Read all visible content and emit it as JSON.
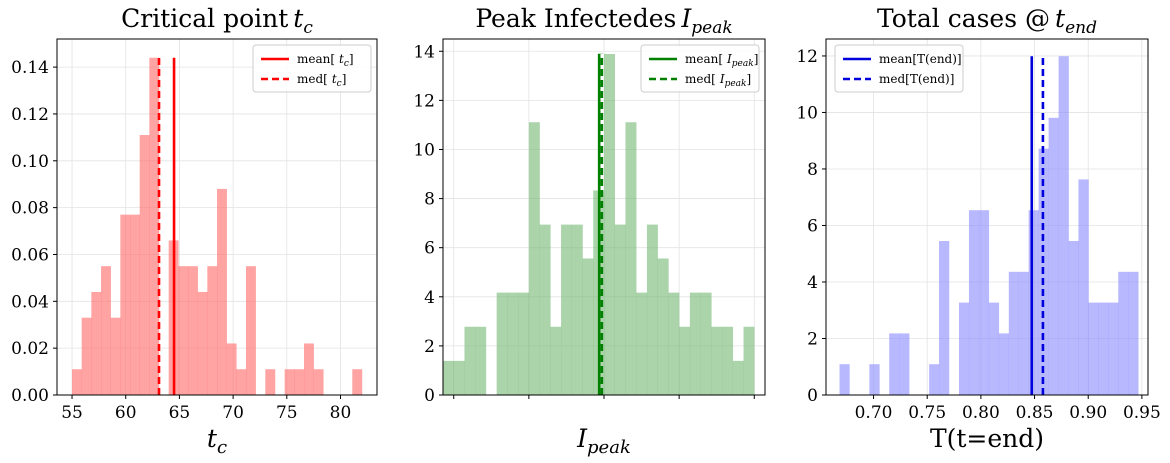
{
  "chart_data": [
    {
      "type": "histogram",
      "title": "Critical point",
      "title_math": "t",
      "title_math_sub": "c",
      "xlabel_math": "t",
      "xlabel_math_sub": "c",
      "xlim": [
        53.6,
        83.4
      ],
      "ylim": [
        0,
        0.152
      ],
      "xticks": [
        55,
        60,
        65,
        70,
        75,
        80
      ],
      "yticks": [
        0.0,
        0.02,
        0.04,
        0.06,
        0.08,
        0.1,
        0.12,
        0.14
      ],
      "xtick_labels": [
        "55",
        "60",
        "65",
        "70",
        "75",
        "80"
      ],
      "ytick_labels": [
        "0.00",
        "0.02",
        "0.04",
        "0.06",
        "0.08",
        "0.10",
        "0.12",
        "0.14"
      ],
      "color": "#ff6b6b",
      "line_color": "#ff0000",
      "bins": [
        {
          "x0": 55.0,
          "x1": 55.9,
          "value": 0.011
        },
        {
          "x0": 55.9,
          "x1": 56.8,
          "value": 0.033
        },
        {
          "x0": 56.8,
          "x1": 57.7,
          "value": 0.044
        },
        {
          "x0": 57.7,
          "x1": 58.6,
          "value": 0.055
        },
        {
          "x0": 58.6,
          "x1": 59.5,
          "value": 0.033
        },
        {
          "x0": 59.5,
          "x1": 60.4,
          "value": 0.077
        },
        {
          "x0": 60.4,
          "x1": 61.3,
          "value": 0.077
        },
        {
          "x0": 61.3,
          "x1": 62.2,
          "value": 0.111
        },
        {
          "x0": 62.2,
          "x1": 63.1,
          "value": 0.144
        },
        {
          "x0": 63.1,
          "x1": 64.0,
          "value": 0.0
        },
        {
          "x0": 64.0,
          "x1": 64.9,
          "value": 0.066
        },
        {
          "x0": 64.9,
          "x1": 65.8,
          "value": 0.055
        },
        {
          "x0": 65.8,
          "x1": 66.7,
          "value": 0.055
        },
        {
          "x0": 66.7,
          "x1": 67.6,
          "value": 0.044
        },
        {
          "x0": 67.6,
          "x1": 68.5,
          "value": 0.055
        },
        {
          "x0": 68.5,
          "x1": 69.4,
          "value": 0.088
        },
        {
          "x0": 69.4,
          "x1": 70.3,
          "value": 0.022
        },
        {
          "x0": 70.3,
          "x1": 71.2,
          "value": 0.011
        },
        {
          "x0": 71.2,
          "x1": 72.1,
          "value": 0.055
        },
        {
          "x0": 72.1,
          "x1": 73.0,
          "value": 0.0
        },
        {
          "x0": 73.0,
          "x1": 73.9,
          "value": 0.011
        },
        {
          "x0": 73.9,
          "x1": 74.8,
          "value": 0.0
        },
        {
          "x0": 74.8,
          "x1": 75.7,
          "value": 0.011
        },
        {
          "x0": 75.7,
          "x1": 76.6,
          "value": 0.011
        },
        {
          "x0": 76.6,
          "x1": 77.5,
          "value": 0.022
        },
        {
          "x0": 77.5,
          "x1": 78.4,
          "value": 0.011
        },
        {
          "x0": 78.4,
          "x1": 79.3,
          "value": 0.0
        },
        {
          "x0": 79.3,
          "x1": 80.2,
          "value": 0.0
        },
        {
          "x0": 80.2,
          "x1": 81.1,
          "value": 0.0
        },
        {
          "x0": 81.1,
          "x1": 82.0,
          "value": 0.011
        }
      ],
      "mean": 64.5,
      "median": 63.1,
      "line_top": 0.144,
      "legend_loc": "upper right",
      "legend": [
        {
          "style": "solid",
          "label": "mean[",
          "math": "t",
          "sub": "c",
          "tail": "]"
        },
        {
          "style": "dashed",
          "label": "med[",
          "math": "t",
          "sub": "c",
          "tail": "]"
        }
      ]
    },
    {
      "type": "histogram",
      "title": "Peak Infectedes",
      "title_math": "I",
      "title_math_sub": "peak",
      "xlabel_math": "I",
      "xlabel_math_sub": "peak",
      "xlim": [
        0,
        30
      ],
      "ylim": [
        0,
        14.5
      ],
      "xticks": [
        1,
        8,
        15,
        22,
        29
      ],
      "yticks": [
        0,
        2,
        4,
        6,
        8,
        10,
        12,
        14
      ],
      "xtick_labels": [
        "",
        "",
        "",
        "",
        ""
      ],
      "ytick_labels": [
        "0",
        "2",
        "4",
        "6",
        "8",
        "10",
        "12",
        "14"
      ],
      "color": "#78b978",
      "line_color": "#008000",
      "bins": [
        {
          "x0": 0.0,
          "x1": 1.0,
          "value": 1.39
        },
        {
          "x0": 1.0,
          "x1": 2.0,
          "value": 1.39
        },
        {
          "x0": 2.0,
          "x1": 3.0,
          "value": 2.78
        },
        {
          "x0": 3.0,
          "x1": 4.0,
          "value": 2.78
        },
        {
          "x0": 4.0,
          "x1": 5.0,
          "value": 0.0
        },
        {
          "x0": 5.0,
          "x1": 6.0,
          "value": 4.17
        },
        {
          "x0": 6.0,
          "x1": 7.0,
          "value": 4.17
        },
        {
          "x0": 7.0,
          "x1": 8.0,
          "value": 4.17
        },
        {
          "x0": 8.0,
          "x1": 9.0,
          "value": 11.11
        },
        {
          "x0": 9.0,
          "x1": 10.0,
          "value": 6.94
        },
        {
          "x0": 10.0,
          "x1": 11.0,
          "value": 2.78
        },
        {
          "x0": 11.0,
          "x1": 12.0,
          "value": 6.94
        },
        {
          "x0": 12.0,
          "x1": 13.0,
          "value": 6.94
        },
        {
          "x0": 13.0,
          "x1": 14.0,
          "value": 5.56
        },
        {
          "x0": 14.0,
          "x1": 15.0,
          "value": 8.33
        },
        {
          "x0": 15.0,
          "x1": 16.0,
          "value": 13.89
        },
        {
          "x0": 16.0,
          "x1": 17.0,
          "value": 6.94
        },
        {
          "x0": 17.0,
          "x1": 18.0,
          "value": 11.11
        },
        {
          "x0": 18.0,
          "x1": 19.0,
          "value": 4.17
        },
        {
          "x0": 19.0,
          "x1": 20.0,
          "value": 6.94
        },
        {
          "x0": 20.0,
          "x1": 21.0,
          "value": 5.56
        },
        {
          "x0": 21.0,
          "x1": 22.0,
          "value": 4.17
        },
        {
          "x0": 22.0,
          "x1": 23.0,
          "value": 2.78
        },
        {
          "x0": 23.0,
          "x1": 24.0,
          "value": 4.17
        },
        {
          "x0": 24.0,
          "x1": 25.0,
          "value": 4.17
        },
        {
          "x0": 25.0,
          "x1": 26.0,
          "value": 2.78
        },
        {
          "x0": 26.0,
          "x1": 27.0,
          "value": 2.78
        },
        {
          "x0": 27.0,
          "x1": 28.0,
          "value": 1.39
        },
        {
          "x0": 28.0,
          "x1": 29.0,
          "value": 2.78
        }
      ],
      "mean": 14.55,
      "median": 14.8,
      "line_top": 13.9,
      "legend_loc": "upper right",
      "legend": [
        {
          "style": "solid",
          "label": "mean[",
          "math": "I",
          "sub": "peak",
          "tail": "]"
        },
        {
          "style": "dashed",
          "label": "med[",
          "math": "I",
          "sub": "peak",
          "tail": "]"
        }
      ]
    },
    {
      "type": "histogram",
      "title": "Total cases @",
      "title_math": "t",
      "title_math_sub": "end",
      "xlabel": "T(t=end)",
      "xlim": [
        0.6557,
        0.9557
      ],
      "ylim": [
        0,
        12.6
      ],
      "xticks": [
        0.7,
        0.75,
        0.8,
        0.85,
        0.9,
        0.95
      ],
      "yticks": [
        0,
        2,
        4,
        6,
        8,
        10,
        12
      ],
      "xtick_labels": [
        "0.70",
        "0.75",
        "0.80",
        "0.85",
        "0.90",
        "0.95"
      ],
      "ytick_labels": [
        "0",
        "2",
        "4",
        "6",
        "8",
        "10",
        "12"
      ],
      "color": "#8c8cff",
      "line_color": "#0000dd",
      "bins": [
        {
          "x0": 0.6683,
          "x1": 0.6775,
          "value": 1.09
        },
        {
          "x0": 0.6775,
          "x1": 0.6868,
          "value": 0.0
        },
        {
          "x0": 0.6868,
          "x1": 0.6961,
          "value": 0.0
        },
        {
          "x0": 0.6961,
          "x1": 0.7054,
          "value": 1.09
        },
        {
          "x0": 0.7054,
          "x1": 0.7146,
          "value": 0.0
        },
        {
          "x0": 0.7146,
          "x1": 0.7239,
          "value": 2.18
        },
        {
          "x0": 0.7239,
          "x1": 0.7332,
          "value": 2.18
        },
        {
          "x0": 0.7332,
          "x1": 0.7425,
          "value": 0.0
        },
        {
          "x0": 0.7425,
          "x1": 0.7518,
          "value": 0.0
        },
        {
          "x0": 0.7518,
          "x1": 0.761,
          "value": 1.09
        },
        {
          "x0": 0.761,
          "x1": 0.7703,
          "value": 5.45
        },
        {
          "x0": 0.7703,
          "x1": 0.7796,
          "value": 0.0
        },
        {
          "x0": 0.7796,
          "x1": 0.7889,
          "value": 3.27
        },
        {
          "x0": 0.7889,
          "x1": 0.7981,
          "value": 6.54
        },
        {
          "x0": 0.7981,
          "x1": 0.8074,
          "value": 6.54
        },
        {
          "x0": 0.8074,
          "x1": 0.8167,
          "value": 3.27
        },
        {
          "x0": 0.8167,
          "x1": 0.826,
          "value": 2.18
        },
        {
          "x0": 0.826,
          "x1": 0.8353,
          "value": 4.36
        },
        {
          "x0": 0.8353,
          "x1": 0.8445,
          "value": 4.36
        },
        {
          "x0": 0.8445,
          "x1": 0.8538,
          "value": 6.54
        },
        {
          "x0": 0.8538,
          "x1": 0.8631,
          "value": 8.72
        },
        {
          "x0": 0.8631,
          "x1": 0.8724,
          "value": 9.81
        },
        {
          "x0": 0.8724,
          "x1": 0.8817,
          "value": 11.99
        },
        {
          "x0": 0.8817,
          "x1": 0.8909,
          "value": 5.45
        },
        {
          "x0": 0.8909,
          "x1": 0.9002,
          "value": 7.63
        },
        {
          "x0": 0.9002,
          "x1": 0.9095,
          "value": 3.27
        },
        {
          "x0": 0.9095,
          "x1": 0.9188,
          "value": 3.27
        },
        {
          "x0": 0.9188,
          "x1": 0.928,
          "value": 3.27
        },
        {
          "x0": 0.928,
          "x1": 0.9373,
          "value": 4.36
        },
        {
          "x0": 0.9373,
          "x1": 0.9466,
          "value": 4.36
        }
      ],
      "mean": 0.8474,
      "median": 0.8578,
      "line_top": 11.99,
      "legend_loc": "upper left",
      "legend": [
        {
          "style": "solid",
          "label": "mean[T(end)]",
          "math": "",
          "sub": "",
          "tail": ""
        },
        {
          "style": "dashed",
          "label": "med[T(end)]",
          "math": "",
          "sub": "",
          "tail": ""
        }
      ]
    }
  ]
}
